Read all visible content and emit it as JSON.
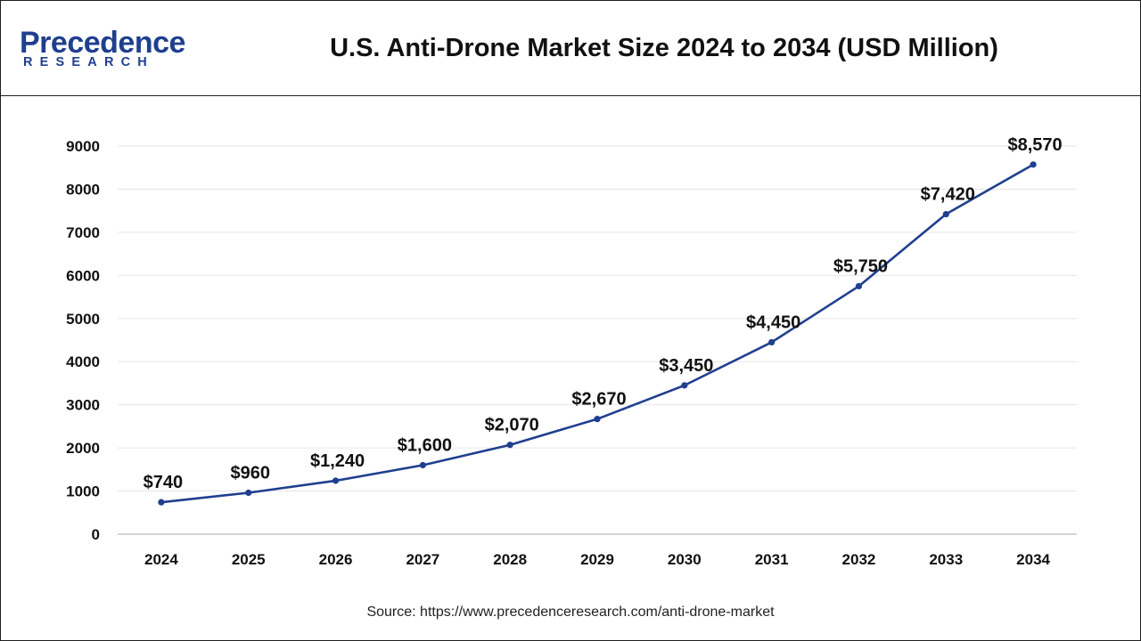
{
  "brand": {
    "name": "Precedence",
    "sub": "RESEARCH",
    "color": "#1f3f8f"
  },
  "chart_data": {
    "type": "line",
    "title": "U.S. Anti-Drone Market Size 2024 to 2034 (USD Million)",
    "xlabel": "",
    "ylabel": "",
    "categories": [
      "2024",
      "2025",
      "2026",
      "2027",
      "2028",
      "2029",
      "2030",
      "2031",
      "2032",
      "2033",
      "2034"
    ],
    "series": [
      {
        "name": "U.S. Anti-Drone Market Size",
        "values": [
          740,
          960,
          1240,
          1600,
          2070,
          2670,
          3450,
          4450,
          5750,
          7420,
          8570
        ],
        "labels": [
          "$740",
          "$960",
          "$1,240",
          "$1,600",
          "$2,070",
          "$2,670",
          "$3,450",
          "$4,450",
          "$5,750",
          "$7,420",
          "$8,570"
        ],
        "color": "#1f3f8f"
      }
    ],
    "ylim": [
      0,
      9000
    ],
    "yticks": [
      0,
      1000,
      2000,
      3000,
      4000,
      5000,
      6000,
      7000,
      8000,
      9000
    ],
    "grid": true,
    "legend": "none"
  },
  "source": "Source: https://www.precedenceresearch.com/anti-drone-market"
}
